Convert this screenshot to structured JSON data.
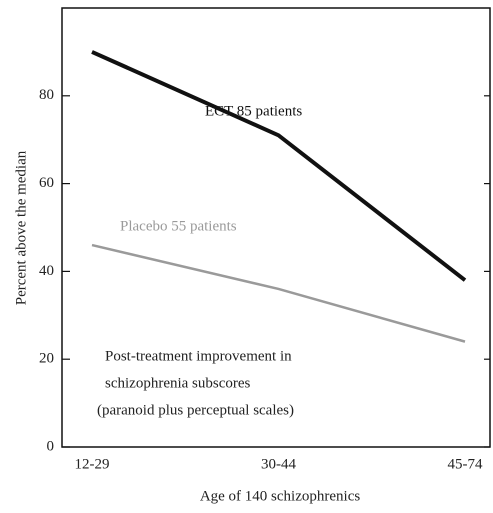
{
  "chart_data": {
    "type": "line",
    "x_label": "Age of 140 schizophrenics",
    "y_label": "Percent above the median",
    "categories": [
      "12-29",
      "30-44",
      "45-74"
    ],
    "series": [
      {
        "name": "ECT   85 patients",
        "color": "#111111",
        "values": [
          90,
          71,
          38
        ]
      },
      {
        "name": "Placebo   55 patients",
        "color": "#9a9a9a",
        "values": [
          46,
          36,
          24
        ]
      }
    ],
    "annotation": [
      "Post-treatment improvement in",
      "schizophrenia subscores",
      "(paranoid plus perceptual scales)"
    ],
    "ylim": [
      0,
      100
    ],
    "yticks": [
      0,
      20,
      40,
      60,
      80
    ],
    "grid": false
  }
}
